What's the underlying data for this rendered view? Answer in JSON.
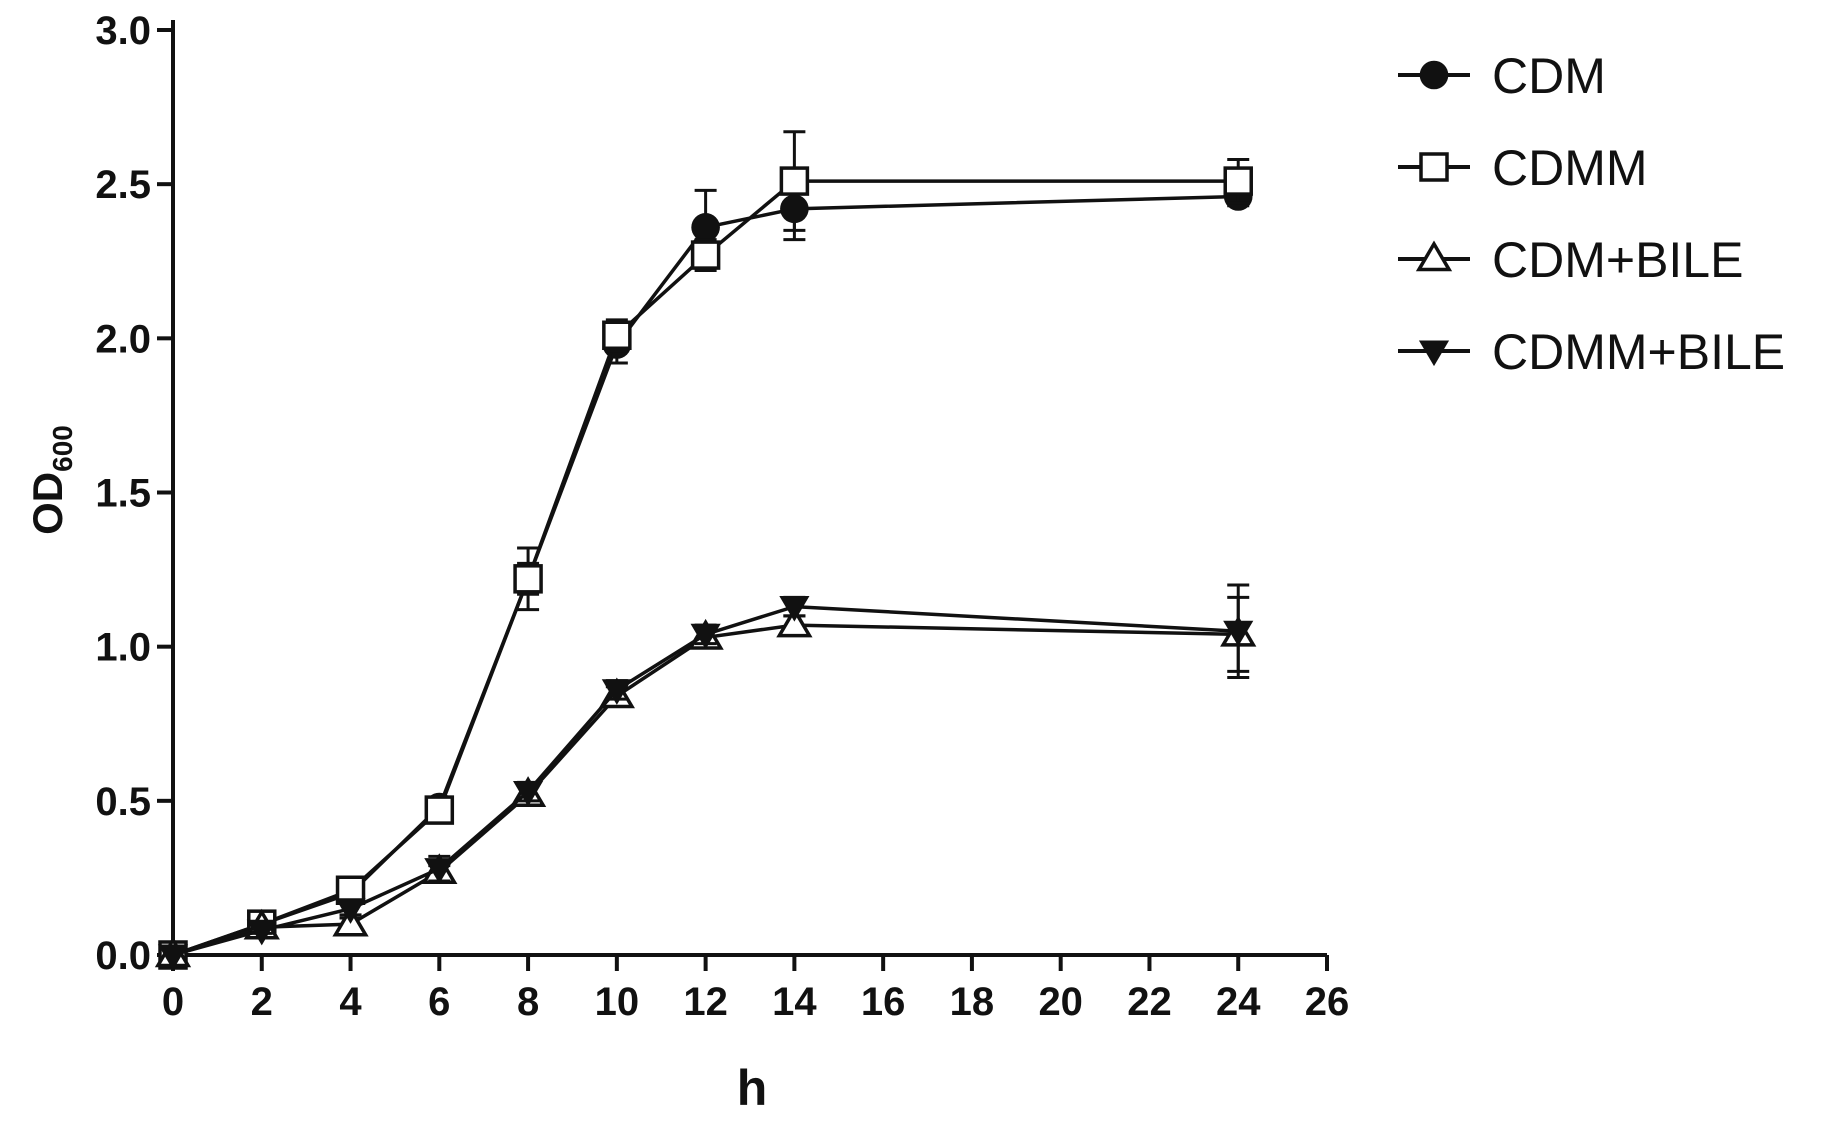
{
  "chart_data": {
    "type": "line",
    "xlabel": "h",
    "ylabel": "OD",
    "ylabel_subscript": "600",
    "xlim": [
      0,
      26
    ],
    "ylim": [
      0,
      3.0
    ],
    "x_ticks": [
      0,
      2,
      4,
      6,
      8,
      10,
      12,
      14,
      16,
      18,
      20,
      22,
      24,
      26
    ],
    "x_tick_labels": [
      "0",
      "2",
      "4",
      "6",
      "8",
      "10",
      "12",
      "14",
      "16",
      "18",
      "20",
      "22",
      "24",
      "26"
    ],
    "y_ticks": [
      0,
      0.5,
      1.0,
      1.5,
      2.0,
      2.5,
      3.0
    ],
    "y_tick_labels": [
      "0.0",
      "0.5",
      "1.0",
      "1.5",
      "2.0",
      "2.5",
      "3.0"
    ],
    "grid": false,
    "legend_position": "top-right",
    "x": [
      0,
      2,
      4,
      6,
      8,
      10,
      12,
      14,
      24
    ],
    "series": [
      {
        "name": "CDM",
        "marker": "filled-circle",
        "values": [
          0,
          0.1,
          0.2,
          0.48,
          1.22,
          1.98,
          2.36,
          2.42,
          2.46
        ],
        "errors": [
          0,
          0.02,
          0.02,
          0.03,
          0.1,
          0.06,
          0.12,
          0.1,
          0.03
        ]
      },
      {
        "name": "CDMM",
        "marker": "open-square",
        "values": [
          0,
          0.1,
          0.21,
          0.47,
          1.22,
          2.01,
          2.27,
          2.51,
          2.51
        ],
        "errors": [
          0,
          0.02,
          0.02,
          0.03,
          0.05,
          0.05,
          0.05,
          0.16,
          0.07
        ]
      },
      {
        "name": "CDM+BILE",
        "marker": "open-triangle-up",
        "values": [
          0,
          0.09,
          0.1,
          0.27,
          0.52,
          0.84,
          1.03,
          1.07,
          1.04
        ],
        "errors": [
          0,
          0.01,
          0.02,
          0.02,
          0.03,
          0.03,
          0.03,
          0.03,
          0.12
        ]
      },
      {
        "name": "CDMM+BILE",
        "marker": "filled-triangle-down",
        "values": [
          0,
          0.08,
          0.15,
          0.28,
          0.53,
          0.86,
          1.04,
          1.13,
          1.05
        ],
        "errors": [
          0,
          0.01,
          0.02,
          0.04,
          0.03,
          0.03,
          0.03,
          0.03,
          0.15
        ]
      }
    ],
    "colors": {
      "line": "#111111",
      "marker_fill": "#111111",
      "open_fill": "#ffffff"
    }
  }
}
